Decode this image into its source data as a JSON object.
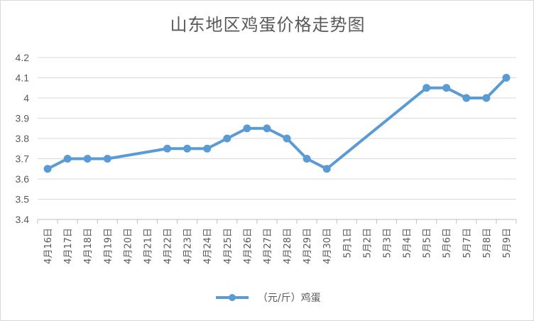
{
  "chart_data": {
    "type": "line",
    "title": "山东地区鸡蛋价格走势图",
    "categories": [
      "4月16日",
      "4月17日",
      "4月18日",
      "4月19日",
      "4月20日",
      "4月21日",
      "4月22日",
      "4月23日",
      "4月24日",
      "4月25日",
      "4月26日",
      "4月27日",
      "4月28日",
      "4月29日",
      "4月30日",
      "5月1日",
      "5月2日",
      "5月3日",
      "5月4日",
      "5月5日",
      "5月6日",
      "5月7日",
      "5月8日",
      "5月9日"
    ],
    "series": [
      {
        "name": "（元/斤）鸡蛋",
        "color": "#5b9bd5",
        "values": [
          3.65,
          3.7,
          3.7,
          3.7,
          null,
          null,
          3.75,
          3.75,
          3.75,
          3.8,
          3.85,
          3.85,
          3.8,
          3.7,
          3.65,
          null,
          null,
          null,
          null,
          4.05,
          4.05,
          4.0,
          4.0,
          4.1
        ]
      }
    ],
    "ylim": [
      3.4,
      4.2
    ],
    "yticks": [
      "3.4",
      "3.5",
      "3.6",
      "3.7",
      "3.8",
      "3.9",
      "4",
      "4.1",
      "4.2"
    ],
    "grid": true,
    "legend": "bottom",
    "gaps": "connect"
  }
}
